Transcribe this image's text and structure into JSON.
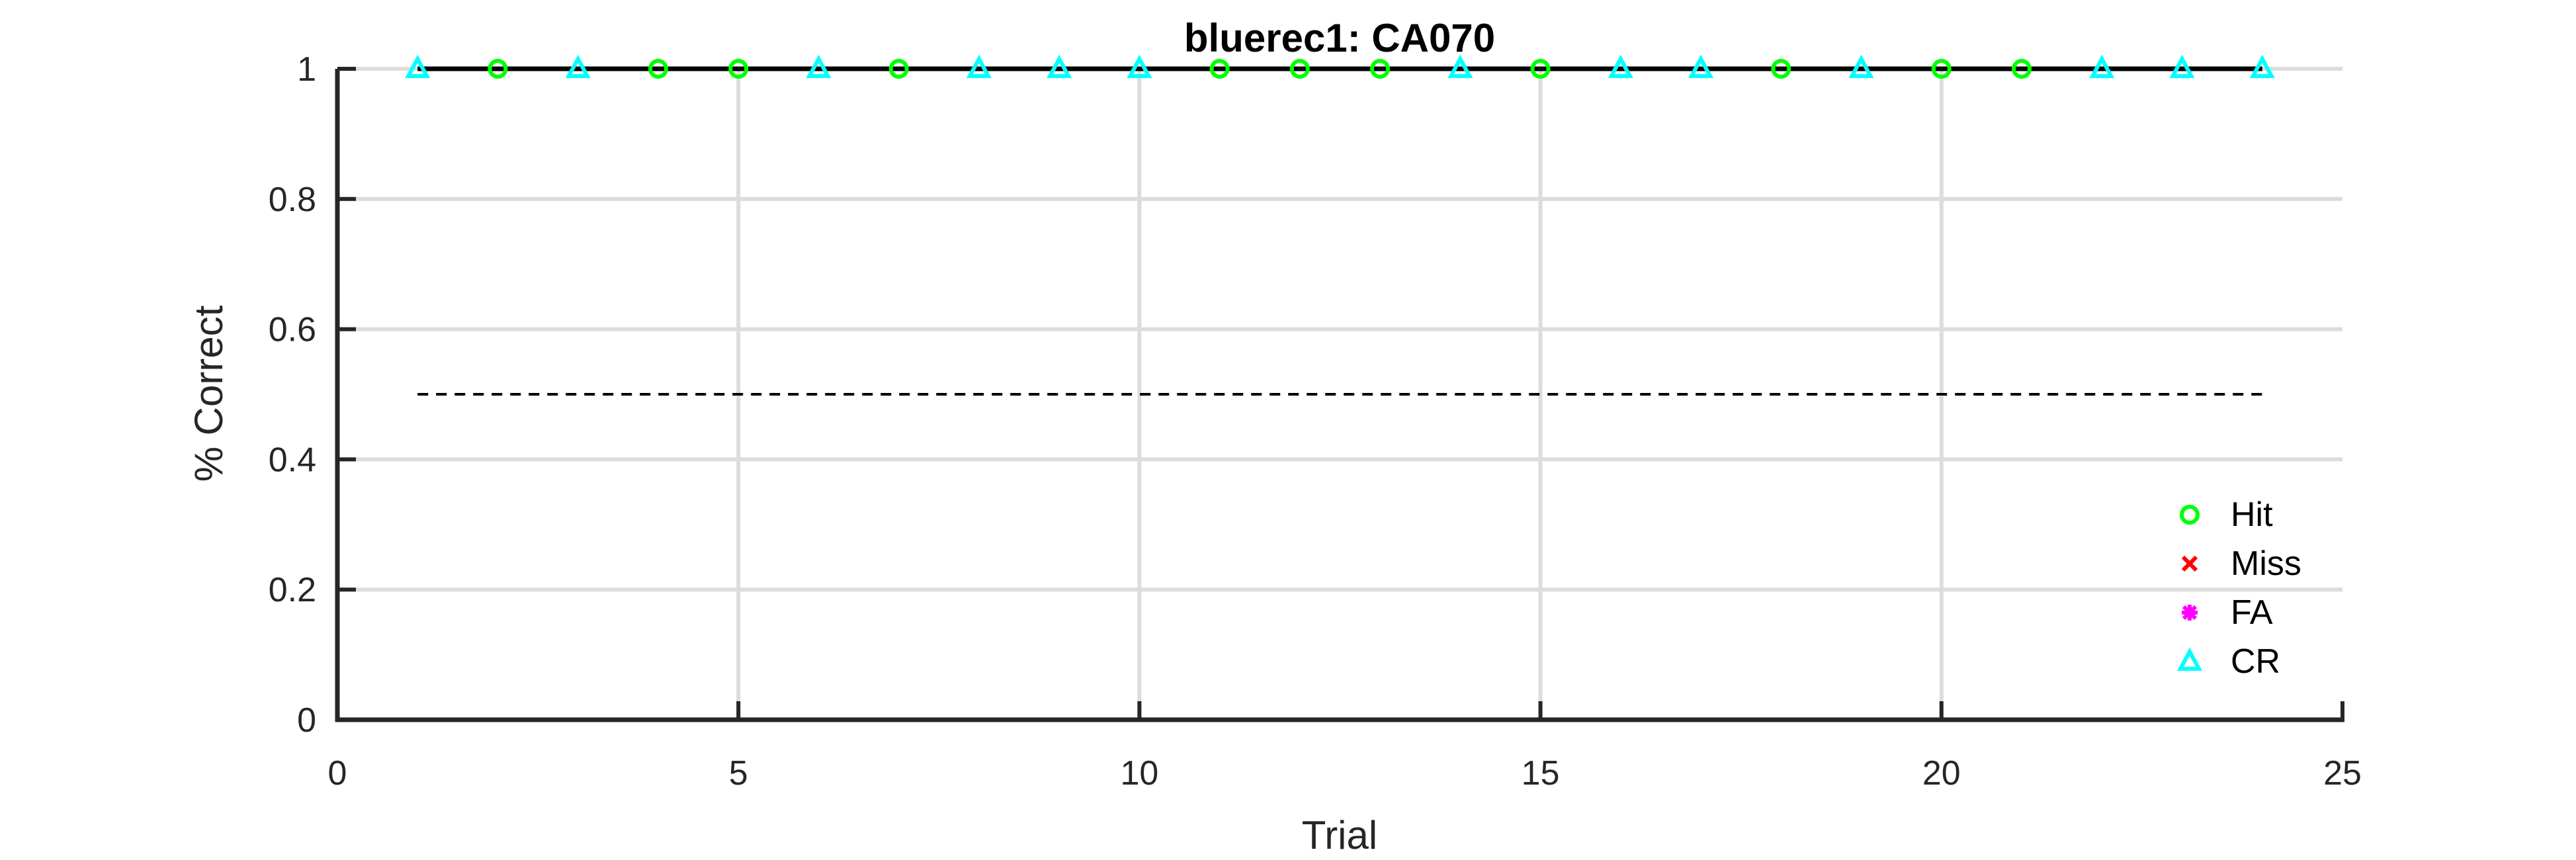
{
  "chart_data": {
    "type": "scatter",
    "title": "bluerec1: CA070",
    "xlabel": "Trial",
    "ylabel": "% Correct",
    "xlim": [
      0,
      25
    ],
    "ylim": [
      0,
      1
    ],
    "xticks": [
      0,
      5,
      10,
      15,
      20,
      25
    ],
    "yticks": [
      0,
      0.2,
      0.4,
      0.6,
      0.8,
      1
    ],
    "xtick_labels": [
      "0",
      "5",
      "10",
      "15",
      "20",
      "25"
    ],
    "ytick_labels": [
      "0",
      "0.2",
      "0.4",
      "0.6",
      "0.8",
      "1"
    ],
    "grid": true,
    "legend_position": "bottom-right",
    "performance_line": {
      "x": [
        1,
        2,
        3,
        4,
        5,
        6,
        7,
        8,
        9,
        10,
        11,
        12,
        13,
        14,
        15,
        16,
        17,
        18,
        19,
        20,
        21,
        22,
        23,
        24
      ],
      "y": [
        1,
        1,
        1,
        1,
        1,
        1,
        1,
        1,
        1,
        1,
        1,
        1,
        1,
        1,
        1,
        1,
        1,
        1,
        1,
        1,
        1,
        1,
        1,
        1
      ],
      "color": "#000000"
    },
    "chance_line": {
      "x": [
        1,
        24
      ],
      "y": 0.5,
      "style": "dashed",
      "color": "#000000"
    },
    "series": [
      {
        "name": "Hit",
        "marker": "circle",
        "color": "#00ff00",
        "x": [
          2,
          4,
          5,
          7,
          11,
          12,
          13,
          15,
          18,
          20,
          21
        ],
        "y": [
          1,
          1,
          1,
          1,
          1,
          1,
          1,
          1,
          1,
          1,
          1
        ]
      },
      {
        "name": "Miss",
        "marker": "x",
        "color": "#ff0000",
        "x": [],
        "y": []
      },
      {
        "name": "FA",
        "marker": "asterisk",
        "color": "#ff00ff",
        "x": [],
        "y": []
      },
      {
        "name": "CR",
        "marker": "triangle",
        "color": "#00ffff",
        "x": [
          1,
          3,
          6,
          8,
          9,
          10,
          14,
          16,
          17,
          19,
          22,
          23,
          24
        ],
        "y": [
          1,
          1,
          1,
          1,
          1,
          1,
          1,
          1,
          1,
          1,
          1,
          1,
          1
        ]
      }
    ]
  }
}
